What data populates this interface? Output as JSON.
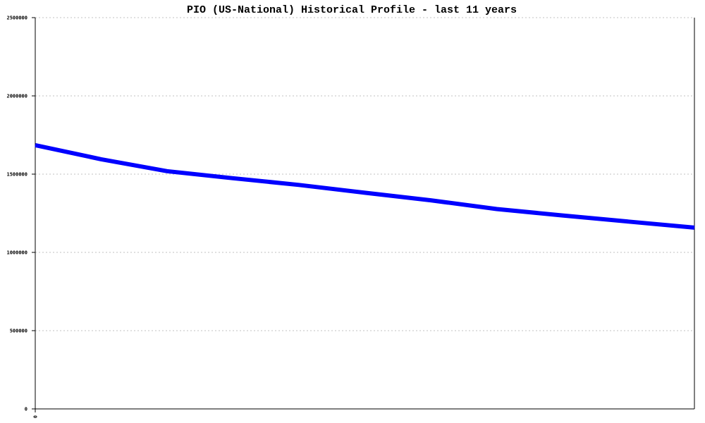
{
  "chart_data": {
    "type": "line",
    "title": "PIO (US-National) Historical Profile - last 11 years",
    "xlabel": "",
    "ylabel": "",
    "ylim": [
      0,
      2500000
    ],
    "yticks": [
      "0",
      "500000",
      "1000000",
      "1500000",
      "2000000",
      "2500000"
    ],
    "xticks": [
      "0"
    ],
    "grid": true,
    "x": [
      0,
      1,
      2,
      3,
      4,
      5,
      6,
      7,
      8,
      9,
      10
    ],
    "series": [
      {
        "values": [
          1685000,
          1595000,
          1519000,
          1474000,
          1431000,
          1381000,
          1333000,
          1277000,
          1236000,
          1197000,
          1158000
        ]
      }
    ],
    "colors": {
      "line": "#0000ff",
      "grid": "#c0c0c0",
      "axis": "#000000"
    }
  }
}
